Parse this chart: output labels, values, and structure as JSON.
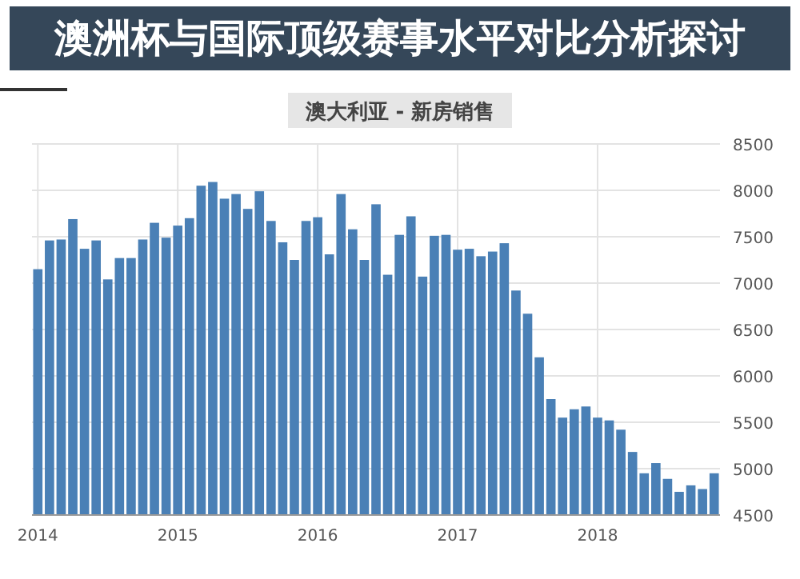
{
  "chart_data": {
    "type": "bar",
    "title": "澳大利亚 - 新房销售",
    "annotations": [
      "澳洲杯与国际顶级赛事水平对比分析探讨"
    ],
    "categories": [
      "2014",
      null,
      null,
      null,
      null,
      null,
      null,
      null,
      null,
      null,
      null,
      null,
      "2015",
      null,
      null,
      null,
      null,
      null,
      null,
      null,
      null,
      null,
      null,
      null,
      "2016",
      null,
      null,
      null,
      null,
      null,
      null,
      null,
      null,
      null,
      null,
      null,
      "2017",
      null,
      null,
      null,
      null,
      null,
      null,
      null,
      null,
      null,
      null,
      null,
      "2018",
      null,
      null,
      null,
      null,
      null,
      null,
      null,
      null,
      null,
      null
    ],
    "values": [
      7150,
      7460,
      7470,
      7690,
      7370,
      7460,
      7040,
      7270,
      7270,
      7470,
      7650,
      7490,
      7620,
      7700,
      8050,
      8090,
      7910,
      7960,
      7800,
      7990,
      7670,
      7440,
      7250,
      7670,
      7710,
      7310,
      7960,
      7580,
      7250,
      7850,
      7090,
      7520,
      7720,
      7070,
      7510,
      7520,
      7360,
      7370,
      7290,
      7340,
      7430,
      6920,
      6670,
      6200,
      5750,
      5550,
      5640,
      5670,
      5550,
      5520,
      5420,
      5180,
      4950,
      5060,
      4890,
      4750,
      4820,
      4780,
      4950
    ],
    "color": "#4a80b6",
    "ylim": [
      4500,
      8500
    ],
    "yticks": [
      4500,
      5000,
      5500,
      6000,
      6500,
      7000,
      7500,
      8000,
      8500
    ],
    "grid": true
  }
}
